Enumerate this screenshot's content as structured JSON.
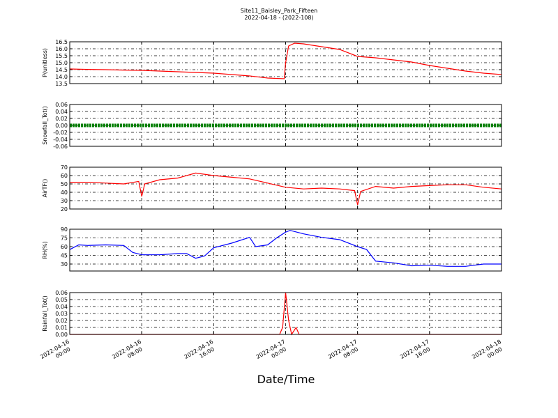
{
  "chart_data": [
    {
      "type": "line",
      "title": "Site11_Baisley_Park_Fifteen",
      "subtitle": "2022-04-18 - (2022-108)",
      "ylabel": "P(unitless)",
      "color": "#ff0000",
      "x": [
        "2022-04-16 00:00",
        "2022-04-16 02:00",
        "2022-04-16 04:00",
        "2022-04-16 06:00",
        "2022-04-16 08:00",
        "2022-04-16 10:00",
        "2022-04-16 12:00",
        "2022-04-16 14:00",
        "2022-04-16 16:00",
        "2022-04-16 18:00",
        "2022-04-16 20:00",
        "2022-04-16 22:00",
        "2022-04-16 23:50",
        "2022-04-17 00:00",
        "2022-04-17 00:20",
        "2022-04-17 01:00",
        "2022-04-17 02:00",
        "2022-04-17 04:00",
        "2022-04-17 06:00",
        "2022-04-17 08:00",
        "2022-04-17 10:00",
        "2022-04-17 12:00",
        "2022-04-17 14:00",
        "2022-04-17 16:00",
        "2022-04-17 18:00",
        "2022-04-17 20:00",
        "2022-04-17 22:00",
        "2022-04-18 00:00"
      ],
      "values": [
        14.55,
        14.52,
        14.5,
        14.47,
        14.45,
        14.4,
        14.35,
        14.3,
        14.25,
        14.15,
        14.05,
        13.9,
        13.85,
        15.0,
        16.2,
        16.4,
        16.35,
        16.15,
        15.95,
        15.45,
        15.35,
        15.2,
        15.05,
        14.8,
        14.6,
        14.4,
        14.25,
        14.15
      ],
      "ylim": [
        13.5,
        16.5
      ],
      "yticks": [
        13.5,
        {
          "value": 14.0,
          "label": "14.0"
        },
        14.5,
        {
          "value": 15.0,
          "label": "15.0"
        },
        15.5,
        {
          "value": 16.0,
          "label": "16.0"
        },
        16.5
      ],
      "grid": true
    },
    {
      "type": "line",
      "ylabel": "Snowfall_Tot()",
      "color": "#008000",
      "x": [
        "2022-04-16 00:00",
        "2022-04-16 08:00",
        "2022-04-16 16:00",
        "2022-04-17 00:00",
        "2022-04-17 08:00",
        "2022-04-17 16:00",
        "2022-04-18 00:00"
      ],
      "values": [
        0,
        0,
        0,
        0,
        0,
        0,
        0
      ],
      "ylim": [
        -0.06,
        0.06
      ],
      "yticks": [
        {
          "value": -0.06,
          "label": "-0.06"
        },
        {
          "value": -0.04,
          "label": "-0.04"
        },
        {
          "value": -0.02,
          "label": "-0.02"
        },
        {
          "value": 0,
          "label": "0.00"
        },
        {
          "value": 0.02,
          "label": "0.02"
        },
        {
          "value": 0.04,
          "label": "0.04"
        },
        {
          "value": 0.06,
          "label": "0.06"
        }
      ],
      "grid": true
    },
    {
      "type": "line",
      "ylabel": "AirTF()",
      "color": "#ff0000",
      "x": [
        "2022-04-16 00:00",
        "2022-04-16 02:00",
        "2022-04-16 04:00",
        "2022-04-16 06:00",
        "2022-04-16 07:40",
        "2022-04-16 08:00",
        "2022-04-16 08:20",
        "2022-04-16 10:00",
        "2022-04-16 12:00",
        "2022-04-16 14:00",
        "2022-04-16 16:00",
        "2022-04-16 18:00",
        "2022-04-16 20:00",
        "2022-04-16 22:00",
        "2022-04-17 00:00",
        "2022-04-17 02:00",
        "2022-04-17 04:00",
        "2022-04-17 06:00",
        "2022-04-17 07:40",
        "2022-04-17 08:00",
        "2022-04-17 08:20",
        "2022-04-17 10:00",
        "2022-04-17 12:00",
        "2022-04-17 14:00",
        "2022-04-17 16:00",
        "2022-04-17 18:00",
        "2022-04-17 20:00",
        "2022-04-17 22:00",
        "2022-04-18 00:00"
      ],
      "values": [
        52,
        52,
        51,
        50,
        53,
        35,
        50,
        55,
        57,
        63,
        60,
        58,
        56,
        51,
        46,
        44,
        45,
        44,
        42,
        25,
        41,
        47,
        45,
        47,
        48,
        49,
        49,
        46,
        44
      ],
      "ylim": [
        20,
        70
      ],
      "yticks": [
        20,
        30,
        40,
        50,
        60,
        70
      ],
      "grid": true
    },
    {
      "type": "line",
      "ylabel": "RH(%)",
      "color": "#0000ff",
      "x": [
        "2022-04-16 00:00",
        "2022-04-16 01:00",
        "2022-04-16 02:00",
        "2022-04-16 04:00",
        "2022-04-16 06:00",
        "2022-04-16 07:00",
        "2022-04-16 08:00",
        "2022-04-16 10:00",
        "2022-04-16 12:00",
        "2022-04-16 13:00",
        "2022-04-16 14:00",
        "2022-04-16 15:00",
        "2022-04-16 16:00",
        "2022-04-16 18:00",
        "2022-04-16 20:00",
        "2022-04-16 20:40",
        "2022-04-16 22:00",
        "2022-04-16 23:00",
        "2022-04-17 00:00",
        "2022-04-17 00:30",
        "2022-04-17 02:00",
        "2022-04-17 04:00",
        "2022-04-17 06:00",
        "2022-04-17 08:00",
        "2022-04-17 09:00",
        "2022-04-17 10:00",
        "2022-04-17 12:00",
        "2022-04-17 14:00",
        "2022-04-17 16:00",
        "2022-04-17 18:00",
        "2022-04-17 20:00",
        "2022-04-17 22:00",
        "2022-04-18 00:00"
      ],
      "values": [
        55,
        63,
        62,
        63,
        62,
        50,
        46,
        46,
        48,
        48,
        40,
        44,
        58,
        66,
        76,
        60,
        63,
        75,
        85,
        88,
        82,
        76,
        72,
        60,
        55,
        35,
        32,
        27,
        28,
        26,
        26,
        30,
        30
      ],
      "ylim": [
        18,
        90
      ],
      "yticks": [
        30,
        45,
        60,
        75,
        90
      ],
      "grid": true
    },
    {
      "type": "line",
      "ylabel": "Rainfall_Tot()",
      "xlabel": "Date/Time",
      "color": "#ff0000",
      "x": [
        "2022-04-16 00:00",
        "2022-04-16 23:20",
        "2022-04-16 23:40",
        "2022-04-17 00:00",
        "2022-04-17 00:20",
        "2022-04-17 00:40",
        "2022-04-17 01:10",
        "2022-04-17 01:30",
        "2022-04-18 00:00"
      ],
      "values": [
        0,
        0,
        0.01,
        0.06,
        0.02,
        0,
        0.01,
        0,
        0
      ],
      "ylim": [
        0,
        0.06
      ],
      "yticks": [
        {
          "value": 0,
          "label": "0.00"
        },
        {
          "value": 0.01,
          "label": "0.01"
        },
        {
          "value": 0.02,
          "label": "0.02"
        },
        {
          "value": 0.03,
          "label": "0.03"
        },
        {
          "value": 0.04,
          "label": "0.04"
        },
        {
          "value": 0.05,
          "label": "0.05"
        },
        {
          "value": 0.06,
          "label": "0.06"
        }
      ],
      "grid": true,
      "xlim": [
        "2022-04-16 00:00",
        "2022-04-18 00:00"
      ],
      "xticks": [
        "2022-04-16 00:00",
        "2022-04-16 08:00",
        "2022-04-16 16:00",
        "2022-04-17 00:00",
        "2022-04-17 08:00",
        "2022-04-17 16:00",
        "2022-04-18 00:00"
      ]
    }
  ]
}
